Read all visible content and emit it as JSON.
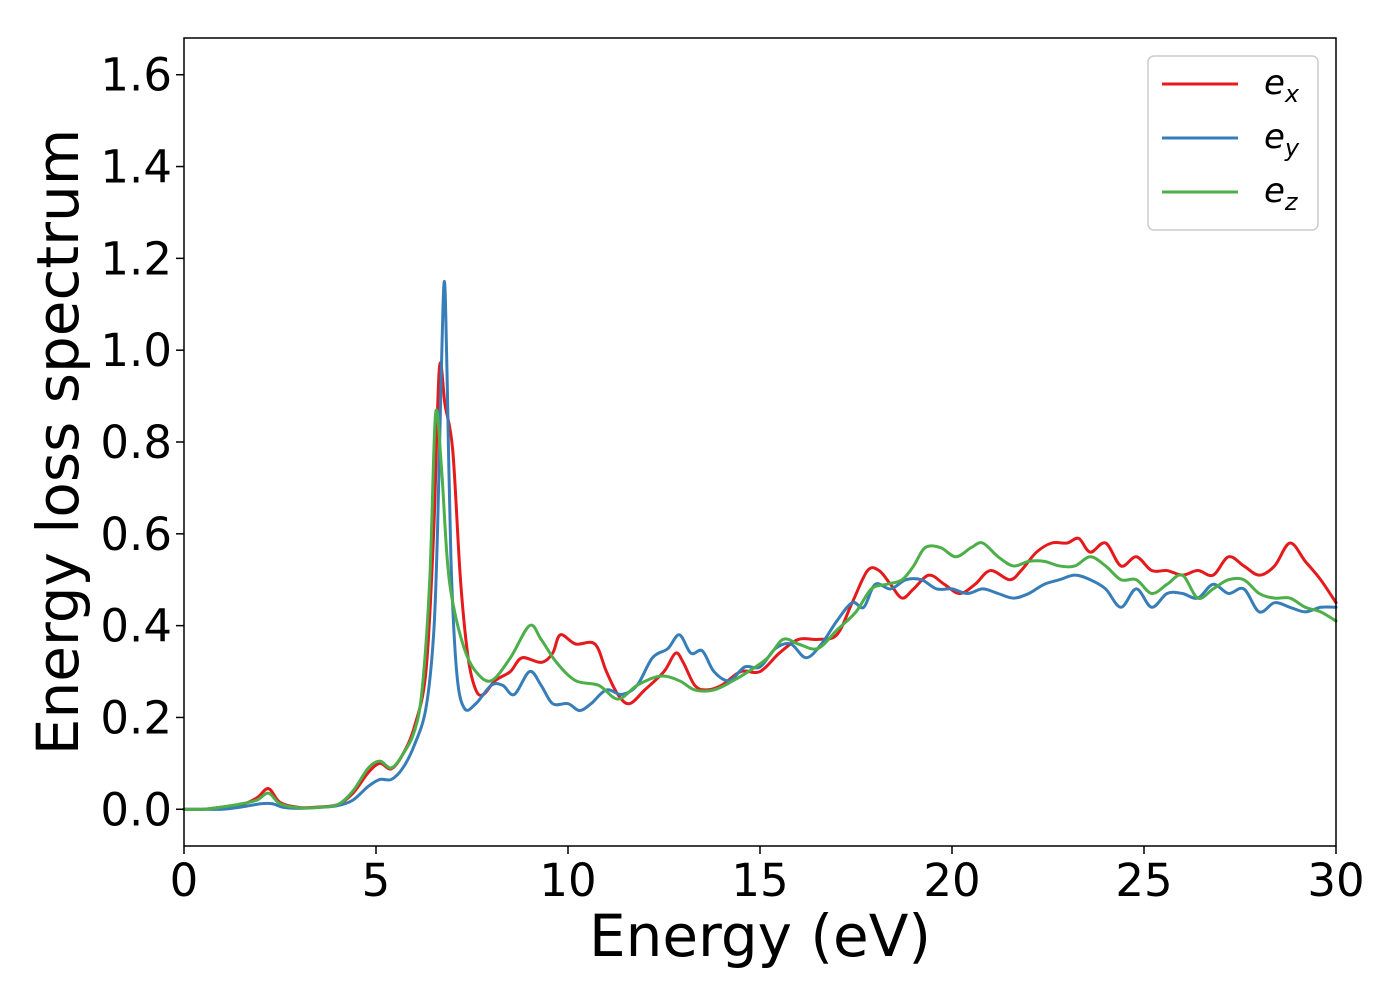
{
  "chart_data": {
    "type": "line",
    "xlabel": "Energy (eV)",
    "ylabel": "Energy loss spectrum",
    "xlim": [
      0,
      30
    ],
    "ylim": [
      -0.08,
      1.68
    ],
    "xticks": [
      0,
      5,
      10,
      15,
      20,
      25,
      30
    ],
    "xtick_labels": [
      "0",
      "5",
      "10",
      "15",
      "20",
      "25",
      "30"
    ],
    "yticks": [
      0.0,
      0.2,
      0.4,
      0.6,
      0.8,
      1.0,
      1.2,
      1.4,
      1.6
    ],
    "ytick_labels": [
      "0.0",
      "0.2",
      "0.4",
      "0.6",
      "0.8",
      "1.0",
      "1.2",
      "1.4",
      "1.6"
    ],
    "grid": false,
    "legend_position": "top-right",
    "series": [
      {
        "name": "e",
        "subscript": "x",
        "color": "#e41a1c",
        "points": [
          [
            0,
            0.0
          ],
          [
            0.5,
            0.0
          ],
          [
            1.0,
            0.005
          ],
          [
            1.5,
            0.01
          ],
          [
            1.9,
            0.025
          ],
          [
            2.2,
            0.045
          ],
          [
            2.5,
            0.015
          ],
          [
            3.0,
            0.004
          ],
          [
            3.5,
            0.005
          ],
          [
            4.0,
            0.01
          ],
          [
            4.4,
            0.035
          ],
          [
            4.8,
            0.08
          ],
          [
            5.1,
            0.1
          ],
          [
            5.4,
            0.088
          ],
          [
            5.7,
            0.12
          ],
          [
            6.0,
            0.18
          ],
          [
            6.3,
            0.3
          ],
          [
            6.5,
            0.6
          ],
          [
            6.65,
            0.96
          ],
          [
            6.8,
            0.88
          ],
          [
            7.0,
            0.78
          ],
          [
            7.2,
            0.5
          ],
          [
            7.4,
            0.33
          ],
          [
            7.6,
            0.26
          ],
          [
            7.8,
            0.25
          ],
          [
            8.1,
            0.28
          ],
          [
            8.5,
            0.3
          ],
          [
            8.8,
            0.33
          ],
          [
            9.3,
            0.32
          ],
          [
            9.6,
            0.34
          ],
          [
            9.8,
            0.38
          ],
          [
            10.2,
            0.36
          ],
          [
            10.7,
            0.36
          ],
          [
            11.0,
            0.3
          ],
          [
            11.3,
            0.25
          ],
          [
            11.6,
            0.23
          ],
          [
            12.0,
            0.26
          ],
          [
            12.5,
            0.3
          ],
          [
            12.8,
            0.34
          ],
          [
            13.0,
            0.32
          ],
          [
            13.3,
            0.27
          ],
          [
            13.6,
            0.26
          ],
          [
            14.0,
            0.27
          ],
          [
            14.5,
            0.3
          ],
          [
            15.0,
            0.3
          ],
          [
            15.5,
            0.34
          ],
          [
            16.0,
            0.37
          ],
          [
            16.5,
            0.37
          ],
          [
            17.0,
            0.38
          ],
          [
            17.4,
            0.45
          ],
          [
            17.8,
            0.52
          ],
          [
            18.1,
            0.52
          ],
          [
            18.4,
            0.49
          ],
          [
            18.7,
            0.46
          ],
          [
            19.0,
            0.48
          ],
          [
            19.4,
            0.51
          ],
          [
            19.8,
            0.49
          ],
          [
            20.2,
            0.47
          ],
          [
            20.6,
            0.49
          ],
          [
            21.0,
            0.52
          ],
          [
            21.5,
            0.5
          ],
          [
            21.8,
            0.52
          ],
          [
            22.2,
            0.56
          ],
          [
            22.6,
            0.58
          ],
          [
            23.0,
            0.58
          ],
          [
            23.3,
            0.59
          ],
          [
            23.6,
            0.56
          ],
          [
            24.0,
            0.58
          ],
          [
            24.4,
            0.53
          ],
          [
            24.8,
            0.55
          ],
          [
            25.2,
            0.52
          ],
          [
            25.6,
            0.52
          ],
          [
            26.0,
            0.51
          ],
          [
            26.4,
            0.52
          ],
          [
            26.8,
            0.51
          ],
          [
            27.2,
            0.55
          ],
          [
            27.6,
            0.53
          ],
          [
            28.0,
            0.51
          ],
          [
            28.4,
            0.53
          ],
          [
            28.8,
            0.58
          ],
          [
            29.2,
            0.54
          ],
          [
            29.6,
            0.5
          ],
          [
            30.0,
            0.45
          ]
        ]
      },
      {
        "name": "e",
        "subscript": "y",
        "color": "#377eb8",
        "points": [
          [
            0,
            0.0
          ],
          [
            0.5,
            0.0
          ],
          [
            1.0,
            0.0
          ],
          [
            1.5,
            0.005
          ],
          [
            2.0,
            0.012
          ],
          [
            2.3,
            0.012
          ],
          [
            2.6,
            0.004
          ],
          [
            3.0,
            0.002
          ],
          [
            3.5,
            0.004
          ],
          [
            4.0,
            0.008
          ],
          [
            4.4,
            0.02
          ],
          [
            4.8,
            0.05
          ],
          [
            5.1,
            0.065
          ],
          [
            5.4,
            0.065
          ],
          [
            5.7,
            0.09
          ],
          [
            6.0,
            0.14
          ],
          [
            6.3,
            0.22
          ],
          [
            6.5,
            0.38
          ],
          [
            6.6,
            0.6
          ],
          [
            6.7,
            0.95
          ],
          [
            6.78,
            1.15
          ],
          [
            6.85,
            0.95
          ],
          [
            6.95,
            0.55
          ],
          [
            7.1,
            0.3
          ],
          [
            7.3,
            0.22
          ],
          [
            7.6,
            0.23
          ],
          [
            8.0,
            0.27
          ],
          [
            8.3,
            0.27
          ],
          [
            8.6,
            0.25
          ],
          [
            9.0,
            0.3
          ],
          [
            9.3,
            0.27
          ],
          [
            9.6,
            0.23
          ],
          [
            10.0,
            0.23
          ],
          [
            10.3,
            0.215
          ],
          [
            10.6,
            0.23
          ],
          [
            11.0,
            0.26
          ],
          [
            11.4,
            0.25
          ],
          [
            11.8,
            0.27
          ],
          [
            12.2,
            0.33
          ],
          [
            12.6,
            0.35
          ],
          [
            12.9,
            0.38
          ],
          [
            13.2,
            0.34
          ],
          [
            13.5,
            0.345
          ],
          [
            13.8,
            0.3
          ],
          [
            14.2,
            0.28
          ],
          [
            14.6,
            0.31
          ],
          [
            15.0,
            0.31
          ],
          [
            15.4,
            0.35
          ],
          [
            15.8,
            0.36
          ],
          [
            16.2,
            0.33
          ],
          [
            16.6,
            0.36
          ],
          [
            17.0,
            0.41
          ],
          [
            17.4,
            0.45
          ],
          [
            17.7,
            0.44
          ],
          [
            18.0,
            0.49
          ],
          [
            18.4,
            0.48
          ],
          [
            18.8,
            0.5
          ],
          [
            19.2,
            0.5
          ],
          [
            19.6,
            0.48
          ],
          [
            20.0,
            0.48
          ],
          [
            20.4,
            0.47
          ],
          [
            20.8,
            0.48
          ],
          [
            21.2,
            0.47
          ],
          [
            21.6,
            0.46
          ],
          [
            22.0,
            0.47
          ],
          [
            22.4,
            0.49
          ],
          [
            22.8,
            0.5
          ],
          [
            23.2,
            0.51
          ],
          [
            23.6,
            0.5
          ],
          [
            24.0,
            0.48
          ],
          [
            24.4,
            0.44
          ],
          [
            24.8,
            0.48
          ],
          [
            25.2,
            0.44
          ],
          [
            25.6,
            0.47
          ],
          [
            26.0,
            0.47
          ],
          [
            26.4,
            0.46
          ],
          [
            26.8,
            0.49
          ],
          [
            27.2,
            0.47
          ],
          [
            27.6,
            0.48
          ],
          [
            28.0,
            0.43
          ],
          [
            28.4,
            0.45
          ],
          [
            28.8,
            0.44
          ],
          [
            29.2,
            0.43
          ],
          [
            29.6,
            0.44
          ],
          [
            30.0,
            0.44
          ]
        ]
      },
      {
        "name": "e",
        "subscript": "z",
        "color": "#4daf4a",
        "points": [
          [
            0,
            0.0
          ],
          [
            0.5,
            0.0
          ],
          [
            1.0,
            0.005
          ],
          [
            1.5,
            0.012
          ],
          [
            1.9,
            0.02
          ],
          [
            2.2,
            0.035
          ],
          [
            2.5,
            0.012
          ],
          [
            3.0,
            0.003
          ],
          [
            3.5,
            0.004
          ],
          [
            4.0,
            0.01
          ],
          [
            4.4,
            0.04
          ],
          [
            4.8,
            0.09
          ],
          [
            5.1,
            0.105
          ],
          [
            5.4,
            0.09
          ],
          [
            5.7,
            0.12
          ],
          [
            6.0,
            0.17
          ],
          [
            6.2,
            0.26
          ],
          [
            6.4,
            0.5
          ],
          [
            6.55,
            0.86
          ],
          [
            6.7,
            0.75
          ],
          [
            6.85,
            0.55
          ],
          [
            7.0,
            0.45
          ],
          [
            7.3,
            0.35
          ],
          [
            7.6,
            0.3
          ],
          [
            8.0,
            0.28
          ],
          [
            8.5,
            0.33
          ],
          [
            9.0,
            0.4
          ],
          [
            9.3,
            0.37
          ],
          [
            9.7,
            0.32
          ],
          [
            10.2,
            0.28
          ],
          [
            10.8,
            0.27
          ],
          [
            11.3,
            0.24
          ],
          [
            11.8,
            0.27
          ],
          [
            12.4,
            0.29
          ],
          [
            12.9,
            0.28
          ],
          [
            13.3,
            0.26
          ],
          [
            13.8,
            0.26
          ],
          [
            14.3,
            0.28
          ],
          [
            14.7,
            0.3
          ],
          [
            15.2,
            0.33
          ],
          [
            15.6,
            0.37
          ],
          [
            16.0,
            0.36
          ],
          [
            16.5,
            0.35
          ],
          [
            17.0,
            0.39
          ],
          [
            17.5,
            0.43
          ],
          [
            17.9,
            0.48
          ],
          [
            18.3,
            0.49
          ],
          [
            18.7,
            0.5
          ],
          [
            19.0,
            0.53
          ],
          [
            19.3,
            0.57
          ],
          [
            19.7,
            0.57
          ],
          [
            20.1,
            0.55
          ],
          [
            20.5,
            0.57
          ],
          [
            20.8,
            0.58
          ],
          [
            21.2,
            0.55
          ],
          [
            21.6,
            0.53
          ],
          [
            22.0,
            0.54
          ],
          [
            22.4,
            0.54
          ],
          [
            22.8,
            0.53
          ],
          [
            23.2,
            0.53
          ],
          [
            23.6,
            0.55
          ],
          [
            24.0,
            0.53
          ],
          [
            24.4,
            0.5
          ],
          [
            24.8,
            0.5
          ],
          [
            25.2,
            0.47
          ],
          [
            25.6,
            0.49
          ],
          [
            26.0,
            0.51
          ],
          [
            26.4,
            0.46
          ],
          [
            26.8,
            0.48
          ],
          [
            27.2,
            0.5
          ],
          [
            27.6,
            0.5
          ],
          [
            28.0,
            0.47
          ],
          [
            28.4,
            0.46
          ],
          [
            28.8,
            0.46
          ],
          [
            29.2,
            0.44
          ],
          [
            29.6,
            0.43
          ],
          [
            30.0,
            0.41
          ]
        ]
      }
    ]
  }
}
